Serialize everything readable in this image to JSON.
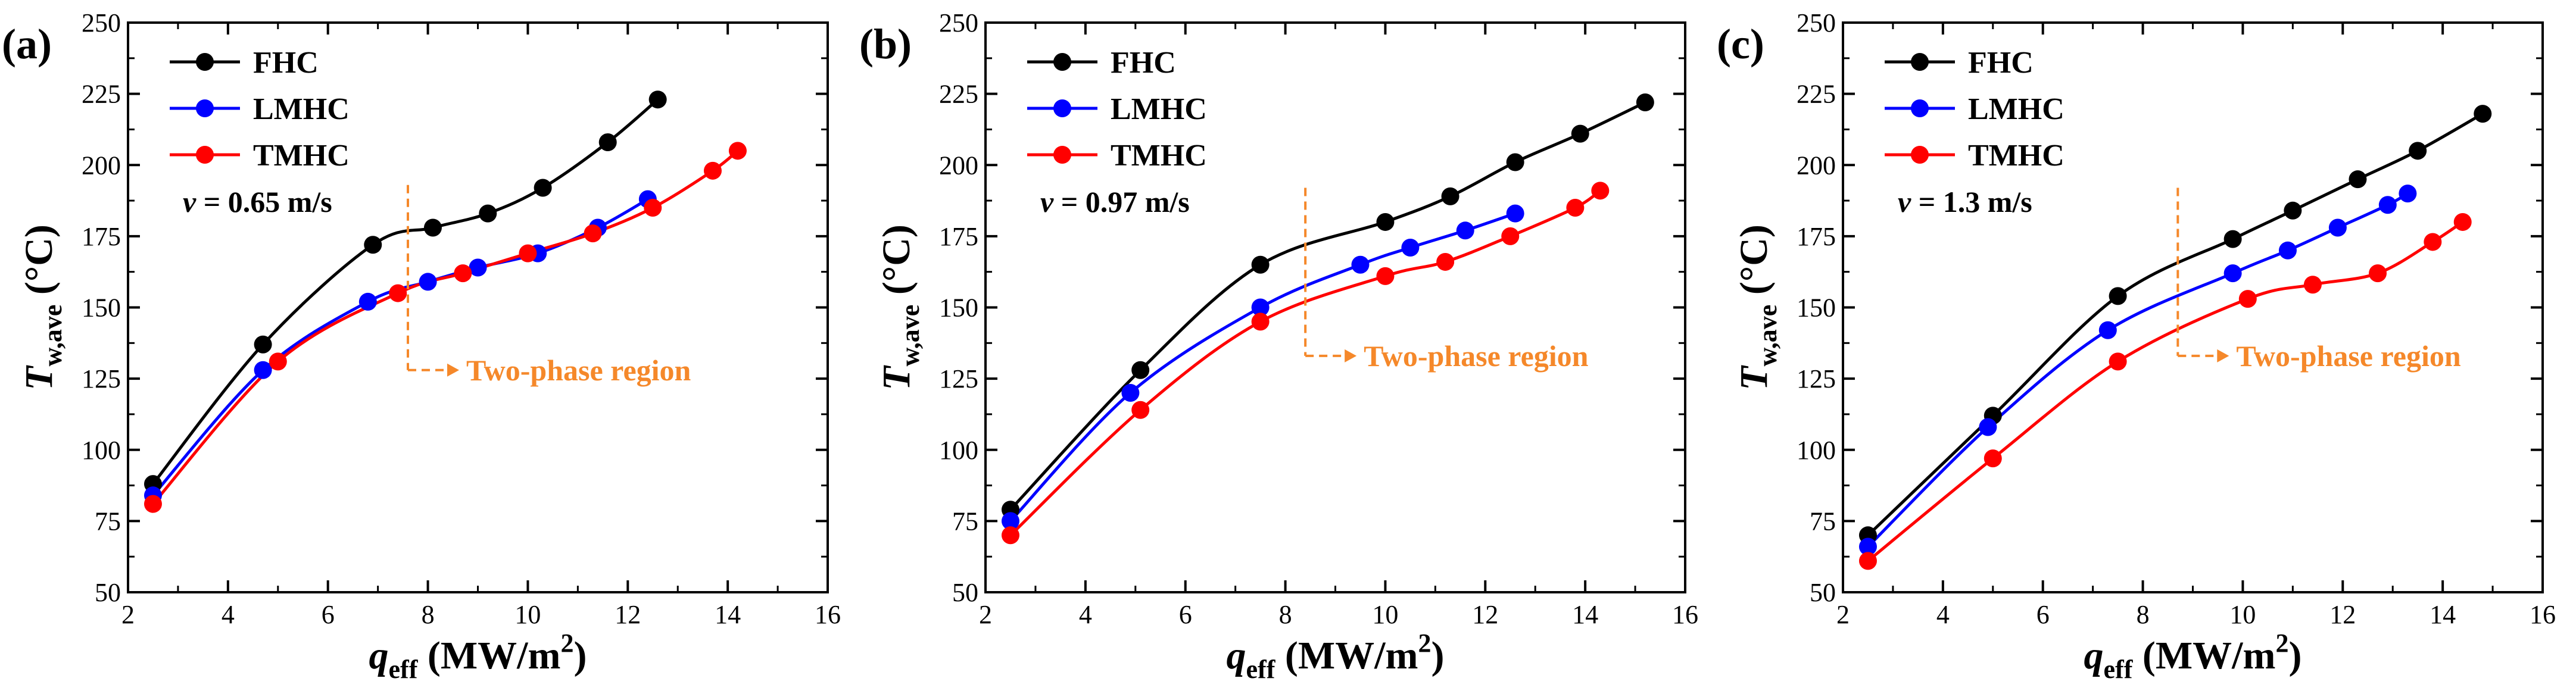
{
  "colors": {
    "FHC": "#000000",
    "LMHC": "#0000ff",
    "TMHC": "#ff0000",
    "region": "#f5882a"
  },
  "chart_data": [
    {
      "type": "line",
      "panel_label": "(a)",
      "xlabel_main": "q",
      "xlabel_sub": "eff",
      "xlabel_unit": " (MW/m",
      "xlabel_sup": "2",
      "xlabel_close": ")",
      "ylabel_main": "T",
      "ylabel_sub": "w,ave",
      "ylabel_unit": " (°C)",
      "xlim": [
        2,
        16
      ],
      "ylim": [
        50,
        250
      ],
      "xticks": [
        "2",
        "4",
        "6",
        "8",
        "10",
        "12",
        "14",
        "16"
      ],
      "yticks": [
        "50",
        "75",
        "100",
        "125",
        "150",
        "175",
        "200",
        "225",
        "250"
      ],
      "velocity_symbol": "v",
      "velocity_text": " = 0.65 m/s",
      "region_label": "Two-phase region",
      "region_x": 7.6,
      "region_y_top": 193,
      "region_y_arrow": 128,
      "series": [
        {
          "name": "FHC",
          "x": [
            2.5,
            4.7,
            6.9,
            8.1,
            9.2,
            10.3,
            11.6,
            12.6
          ],
          "y": [
            88,
            137,
            172,
            178,
            183,
            192,
            208,
            223
          ]
        },
        {
          "name": "LMHC",
          "x": [
            2.5,
            4.7,
            6.8,
            8.0,
            9.0,
            10.2,
            11.4,
            12.4
          ],
          "y": [
            84,
            128,
            152,
            159,
            164,
            169,
            178,
            188
          ]
        },
        {
          "name": "TMHC",
          "x": [
            2.5,
            5.0,
            7.4,
            8.7,
            10.0,
            11.3,
            12.5,
            13.7,
            14.2
          ],
          "y": [
            81,
            131,
            155,
            162,
            169,
            176,
            185,
            198,
            205
          ]
        }
      ]
    },
    {
      "type": "line",
      "panel_label": "(b)",
      "xlabel_main": "q",
      "xlabel_sub": "eff",
      "xlabel_unit": " (MW/m",
      "xlabel_sup": "2",
      "xlabel_close": ")",
      "ylabel_main": "T",
      "ylabel_sub": "w,ave",
      "ylabel_unit": " (°C)",
      "xlim": [
        2,
        16
      ],
      "ylim": [
        50,
        250
      ],
      "xticks": [
        "2",
        "4",
        "6",
        "8",
        "10",
        "12",
        "14",
        "16"
      ],
      "yticks": [
        "50",
        "75",
        "100",
        "125",
        "150",
        "175",
        "200",
        "225",
        "250"
      ],
      "velocity_symbol": "v",
      "velocity_text": " = 0.97 m/s",
      "region_label": "Two-phase region",
      "region_x": 8.4,
      "region_y_top": 192,
      "region_y_arrow": 133,
      "series": [
        {
          "name": "FHC",
          "x": [
            2.5,
            5.1,
            7.5,
            10.0,
            11.3,
            12.6,
            13.9,
            15.2
          ],
          "y": [
            79,
            128,
            165,
            180,
            189,
            201,
            211,
            222
          ]
        },
        {
          "name": "LMHC",
          "x": [
            2.5,
            4.9,
            7.5,
            9.5,
            10.5,
            11.6,
            12.6
          ],
          "y": [
            75,
            120,
            150,
            165,
            171,
            177,
            183
          ]
        },
        {
          "name": "TMHC",
          "x": [
            2.5,
            5.1,
            7.5,
            10.0,
            11.2,
            12.5,
            13.8,
            14.3
          ],
          "y": [
            70,
            114,
            145,
            161,
            166,
            175,
            185,
            191
          ]
        }
      ]
    },
    {
      "type": "line",
      "panel_label": "(c)",
      "xlabel_main": "q",
      "xlabel_sub": "eff",
      "xlabel_unit": " (MW/m",
      "xlabel_sup": "2",
      "xlabel_close": ")",
      "ylabel_main": "T",
      "ylabel_sub": "w,ave",
      "ylabel_unit": " (°C)",
      "xlim": [
        2,
        16
      ],
      "ylim": [
        50,
        250
      ],
      "xticks": [
        "2",
        "4",
        "6",
        "8",
        "10",
        "12",
        "14",
        "16"
      ],
      "yticks": [
        "50",
        "75",
        "100",
        "125",
        "150",
        "175",
        "200",
        "225",
        "250"
      ],
      "velocity_symbol": "v",
      "velocity_text": " = 1.3 m/s",
      "region_label": "Two-phase region",
      "region_x": 8.7,
      "region_y_top": 192,
      "region_y_arrow": 133,
      "series": [
        {
          "name": "FHC",
          "x": [
            2.5,
            5.0,
            7.5,
            9.8,
            11.0,
            12.3,
            13.5,
            14.8
          ],
          "y": [
            70,
            112,
            154,
            174,
            184,
            195,
            205,
            218
          ]
        },
        {
          "name": "LMHC",
          "x": [
            2.5,
            4.9,
            7.3,
            9.8,
            10.9,
            11.9,
            12.9,
            13.3
          ],
          "y": [
            66,
            108,
            142,
            162,
            170,
            178,
            186,
            190
          ]
        },
        {
          "name": "TMHC",
          "x": [
            2.5,
            5.0,
            7.5,
            10.1,
            11.4,
            12.7,
            13.8,
            14.4
          ],
          "y": [
            61,
            97,
            131,
            153,
            158,
            162,
            173,
            180
          ]
        }
      ]
    }
  ]
}
